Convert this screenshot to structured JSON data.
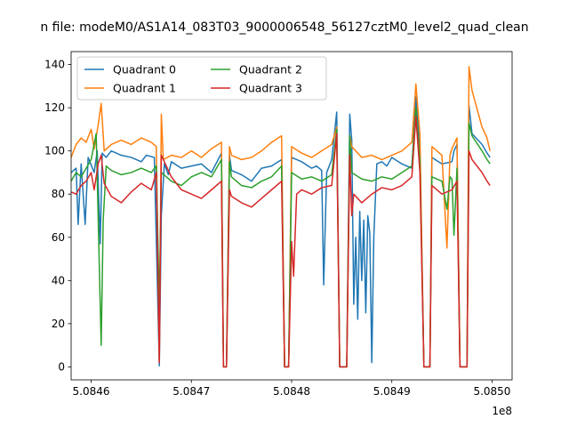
{
  "chart_data": {
    "type": "line",
    "title": "n file: modeM0/AS1A14_083T03_9000006548_56127cztM0_level2_quad_clean",
    "xlabel": "",
    "ylabel": "",
    "x_offset_label": "1e8",
    "xlim": [
      5.08458,
      5.08502
    ],
    "ylim": [
      -6,
      146
    ],
    "x_ticks": [
      {
        "value": 5.0846,
        "label": "5.0846"
      },
      {
        "value": 5.0847,
        "label": "5.0847"
      },
      {
        "value": 5.0848,
        "label": "5.0848"
      },
      {
        "value": 5.0849,
        "label": "5.0849"
      },
      {
        "value": 5.085,
        "label": "5.0850"
      }
    ],
    "y_ticks": [
      {
        "value": 0,
        "label": "0"
      },
      {
        "value": 20,
        "label": "20"
      },
      {
        "value": 40,
        "label": "40"
      },
      {
        "value": 60,
        "label": "60"
      },
      {
        "value": 80,
        "label": "80"
      },
      {
        "value": 100,
        "label": "100"
      },
      {
        "value": 120,
        "label": "120"
      },
      {
        "value": 140,
        "label": "140"
      }
    ],
    "grid": false,
    "legend": {
      "placement": "top-left",
      "columns": 2
    },
    "series": [
      {
        "name": "Quadrant 0",
        "color": "#1f77b4",
        "points": [
          [
            5.08458,
            90
          ],
          [
            5.084585,
            92
          ],
          [
            5.084587,
            66
          ],
          [
            5.08459,
            94
          ],
          [
            5.084594,
            66
          ],
          [
            5.084597,
            97
          ],
          [
            5.084603,
            90
          ],
          [
            5.084606,
            100
          ],
          [
            5.084609,
            57
          ],
          [
            5.084611,
            99
          ],
          [
            5.084615,
            97
          ],
          [
            5.08462,
            100
          ],
          [
            5.08463,
            98
          ],
          [
            5.08464,
            97
          ],
          [
            5.08465,
            95
          ],
          [
            5.084655,
            98
          ],
          [
            5.084663,
            97
          ],
          [
            5.084668,
            0.5
          ],
          [
            5.08467,
            70
          ],
          [
            5.084673,
            94
          ],
          [
            5.084677,
            89
          ],
          [
            5.08468,
            95
          ],
          [
            5.08469,
            92
          ],
          [
            5.0847,
            93
          ],
          [
            5.08471,
            94
          ],
          [
            5.08472,
            90
          ],
          [
            5.08473,
            99
          ],
          [
            5.084732,
            0
          ],
          [
            5.084735,
            0
          ],
          [
            5.084738,
            98
          ],
          [
            5.08474,
            91
          ],
          [
            5.08475,
            89
          ],
          [
            5.08476,
            86
          ],
          [
            5.08477,
            92
          ],
          [
            5.08478,
            93
          ],
          [
            5.08479,
            96
          ],
          [
            5.084793,
            0
          ],
          [
            5.084797,
            0
          ],
          [
            5.0848,
            97
          ],
          [
            5.08481,
            95
          ],
          [
            5.08482,
            92
          ],
          [
            5.084825,
            93
          ],
          [
            5.08483,
            91
          ],
          [
            5.084832,
            38
          ],
          [
            5.084835,
            90
          ],
          [
            5.08484,
            96
          ],
          [
            5.084845,
            118
          ],
          [
            5.084848,
            0
          ],
          [
            5.084855,
            0
          ],
          [
            5.084858,
            117
          ],
          [
            5.08486,
            105
          ],
          [
            5.084862,
            29
          ],
          [
            5.084864,
            60
          ],
          [
            5.084866,
            22
          ],
          [
            5.084868,
            72
          ],
          [
            5.08487,
            40
          ],
          [
            5.084872,
            68
          ],
          [
            5.084874,
            25
          ],
          [
            5.084876,
            70
          ],
          [
            5.084878,
            62
          ],
          [
            5.08488,
            2
          ],
          [
            5.084882,
            60
          ],
          [
            5.084885,
            94
          ],
          [
            5.08489,
            95
          ],
          [
            5.084895,
            93
          ],
          [
            5.0849,
            97
          ],
          [
            5.08491,
            94
          ],
          [
            5.08492,
            92
          ],
          [
            5.084924,
            125
          ],
          [
            5.084928,
            99
          ],
          [
            5.084932,
            0
          ],
          [
            5.084938,
            0
          ],
          [
            5.08494,
            97
          ],
          [
            5.08495,
            94
          ],
          [
            5.08496,
            95
          ],
          [
            5.084962,
            100
          ],
          [
            5.084965,
            103
          ],
          [
            5.084968,
            0
          ],
          [
            5.084975,
            0
          ],
          [
            5.084977,
            121
          ],
          [
            5.08498,
            108
          ],
          [
            5.08499,
            103
          ],
          [
            5.084995,
            99
          ],
          [
            5.084998,
            97
          ]
        ]
      },
      {
        "name": "Quadrant 1",
        "color": "#ff7f0e",
        "points": [
          [
            5.08458,
            97
          ],
          [
            5.084585,
            103
          ],
          [
            5.08459,
            106
          ],
          [
            5.084595,
            104
          ],
          [
            5.0846,
            110
          ],
          [
            5.084603,
            101
          ],
          [
            5.084607,
            112
          ],
          [
            5.08461,
            122
          ],
          [
            5.084613,
            100
          ],
          [
            5.08462,
            103
          ],
          [
            5.08463,
            105
          ],
          [
            5.08464,
            103
          ],
          [
            5.08465,
            106
          ],
          [
            5.08466,
            104
          ],
          [
            5.084665,
            102
          ],
          [
            5.084668,
            3
          ],
          [
            5.08467,
            117
          ],
          [
            5.084672,
            96
          ],
          [
            5.08468,
            98
          ],
          [
            5.08469,
            97
          ],
          [
            5.0847,
            100
          ],
          [
            5.08471,
            97
          ],
          [
            5.08472,
            101
          ],
          [
            5.08473,
            104
          ],
          [
            5.084732,
            0
          ],
          [
            5.084735,
            0
          ],
          [
            5.084738,
            102
          ],
          [
            5.08474,
            98
          ],
          [
            5.08475,
            96
          ],
          [
            5.08476,
            97
          ],
          [
            5.08477,
            100
          ],
          [
            5.08478,
            104
          ],
          [
            5.08479,
            107
          ],
          [
            5.084793,
            0
          ],
          [
            5.084797,
            0
          ],
          [
            5.0848,
            102
          ],
          [
            5.08481,
            99
          ],
          [
            5.08482,
            97
          ],
          [
            5.08483,
            100
          ],
          [
            5.08484,
            103
          ],
          [
            5.084845,
            111
          ],
          [
            5.084848,
            0
          ],
          [
            5.084855,
            0
          ],
          [
            5.084858,
            107
          ],
          [
            5.08486,
            102
          ],
          [
            5.08487,
            97
          ],
          [
            5.08488,
            98
          ],
          [
            5.08489,
            96
          ],
          [
            5.0849,
            98
          ],
          [
            5.08491,
            100
          ],
          [
            5.08492,
            104
          ],
          [
            5.084924,
            131
          ],
          [
            5.084928,
            108
          ],
          [
            5.084932,
            0
          ],
          [
            5.084938,
            0
          ],
          [
            5.08494,
            102
          ],
          [
            5.08495,
            98
          ],
          [
            5.084955,
            55
          ],
          [
            5.084958,
            98
          ],
          [
            5.08496,
            101
          ],
          [
            5.084965,
            106
          ],
          [
            5.084968,
            0
          ],
          [
            5.084975,
            0
          ],
          [
            5.084977,
            139
          ],
          [
            5.08498,
            128
          ],
          [
            5.08499,
            111
          ],
          [
            5.084995,
            106
          ],
          [
            5.084998,
            100
          ]
        ]
      },
      {
        "name": "Quadrant 2",
        "color": "#2ca02c",
        "points": [
          [
            5.08458,
            86
          ],
          [
            5.084585,
            90
          ],
          [
            5.08459,
            88
          ],
          [
            5.084595,
            92
          ],
          [
            5.0846,
            96
          ],
          [
            5.084605,
            108
          ],
          [
            5.084608,
            49
          ],
          [
            5.08461,
            10
          ],
          [
            5.084612,
            68
          ],
          [
            5.084615,
            93
          ],
          [
            5.08462,
            91
          ],
          [
            5.08463,
            89
          ],
          [
            5.08464,
            90
          ],
          [
            5.08465,
            92
          ],
          [
            5.08466,
            90
          ],
          [
            5.084665,
            93
          ],
          [
            5.084668,
            27
          ],
          [
            5.08467,
            90
          ],
          [
            5.08468,
            86
          ],
          [
            5.08469,
            84
          ],
          [
            5.0847,
            88
          ],
          [
            5.08471,
            90
          ],
          [
            5.08472,
            88
          ],
          [
            5.08473,
            96
          ],
          [
            5.084732,
            0
          ],
          [
            5.084735,
            0
          ],
          [
            5.084738,
            95
          ],
          [
            5.08474,
            88
          ],
          [
            5.08475,
            84
          ],
          [
            5.08476,
            83
          ],
          [
            5.08477,
            86
          ],
          [
            5.08478,
            88
          ],
          [
            5.08479,
            93
          ],
          [
            5.084793,
            0
          ],
          [
            5.084797,
            0
          ],
          [
            5.0848,
            90
          ],
          [
            5.08481,
            87
          ],
          [
            5.08482,
            88
          ],
          [
            5.08483,
            86
          ],
          [
            5.08484,
            89
          ],
          [
            5.084845,
            110
          ],
          [
            5.084848,
            0
          ],
          [
            5.084855,
            0
          ],
          [
            5.084858,
            107
          ],
          [
            5.08486,
            90
          ],
          [
            5.08487,
            87
          ],
          [
            5.08488,
            86
          ],
          [
            5.08489,
            88
          ],
          [
            5.0849,
            87
          ],
          [
            5.08491,
            90
          ],
          [
            5.08492,
            93
          ],
          [
            5.084924,
            120
          ],
          [
            5.084928,
            95
          ],
          [
            5.084932,
            0
          ],
          [
            5.084938,
            0
          ],
          [
            5.08494,
            88
          ],
          [
            5.08495,
            86
          ],
          [
            5.084955,
            73
          ],
          [
            5.084958,
            88
          ],
          [
            5.08496,
            87
          ],
          [
            5.084962,
            61
          ],
          [
            5.084965,
            92
          ],
          [
            5.084968,
            0
          ],
          [
            5.084975,
            0
          ],
          [
            5.084977,
            113
          ],
          [
            5.08498,
            107
          ],
          [
            5.08499,
            100
          ],
          [
            5.084995,
            96
          ],
          [
            5.084998,
            94
          ]
        ]
      },
      {
        "name": "Quadrant 3",
        "color": "#d62728",
        "points": [
          [
            5.08458,
            81
          ],
          [
            5.084585,
            80
          ],
          [
            5.08459,
            84
          ],
          [
            5.084595,
            86
          ],
          [
            5.0846,
            90
          ],
          [
            5.084603,
            82
          ],
          [
            5.084607,
            94
          ],
          [
            5.08461,
            98
          ],
          [
            5.084613,
            85
          ],
          [
            5.08462,
            79
          ],
          [
            5.08463,
            76
          ],
          [
            5.08464,
            81
          ],
          [
            5.08465,
            85
          ],
          [
            5.08466,
            82
          ],
          [
            5.084665,
            90
          ],
          [
            5.084668,
            2
          ],
          [
            5.08467,
            98
          ],
          [
            5.08468,
            88
          ],
          [
            5.08469,
            82
          ],
          [
            5.0847,
            80
          ],
          [
            5.08471,
            78
          ],
          [
            5.08472,
            82
          ],
          [
            5.08473,
            86
          ],
          [
            5.084732,
            0
          ],
          [
            5.084735,
            0
          ],
          [
            5.084738,
            82
          ],
          [
            5.08474,
            79
          ],
          [
            5.08475,
            76
          ],
          [
            5.08476,
            74
          ],
          [
            5.08477,
            78
          ],
          [
            5.08478,
            82
          ],
          [
            5.08479,
            86
          ],
          [
            5.084793,
            0
          ],
          [
            5.084797,
            0
          ],
          [
            5.0848,
            58
          ],
          [
            5.084802,
            42
          ],
          [
            5.084805,
            80
          ],
          [
            5.08481,
            82
          ],
          [
            5.08482,
            80
          ],
          [
            5.08483,
            83
          ],
          [
            5.08484,
            84
          ],
          [
            5.084845,
            108
          ],
          [
            5.084848,
            0
          ],
          [
            5.084855,
            0
          ],
          [
            5.084858,
            98
          ],
          [
            5.08486,
            70
          ],
          [
            5.084862,
            80
          ],
          [
            5.08487,
            76
          ],
          [
            5.08488,
            80
          ],
          [
            5.08489,
            83
          ],
          [
            5.0849,
            82
          ],
          [
            5.08491,
            84
          ],
          [
            5.08492,
            88
          ],
          [
            5.084924,
            116
          ],
          [
            5.084928,
            90
          ],
          [
            5.084932,
            0
          ],
          [
            5.084938,
            0
          ],
          [
            5.08494,
            84
          ],
          [
            5.08495,
            80
          ],
          [
            5.08496,
            82
          ],
          [
            5.084965,
            86
          ],
          [
            5.084968,
            0
          ],
          [
            5.084975,
            0
          ],
          [
            5.084977,
            100
          ],
          [
            5.08498,
            96
          ],
          [
            5.08499,
            90
          ],
          [
            5.084995,
            86
          ],
          [
            5.084998,
            84
          ]
        ]
      }
    ]
  }
}
